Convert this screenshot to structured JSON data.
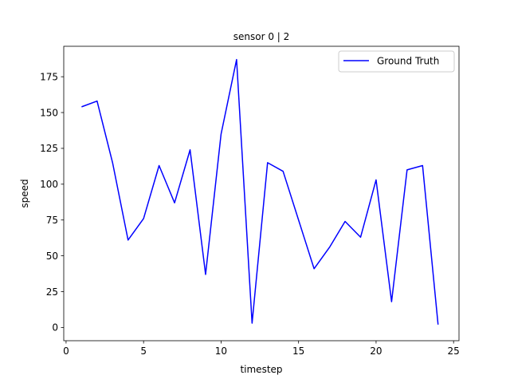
{
  "chart_data": {
    "type": "line",
    "title": "sensor 0 | 2",
    "xlabel": "timestep",
    "ylabel": "speed",
    "xlim": [
      -0.15,
      25.35
    ],
    "ylim": [
      -9.25,
      196.25
    ],
    "xticks": [
      0,
      5,
      10,
      15,
      20,
      25
    ],
    "yticks": [
      0,
      25,
      50,
      75,
      100,
      125,
      150,
      175
    ],
    "grid": false,
    "legend": {
      "placement": "top-right"
    },
    "series": [
      {
        "name": "Ground Truth",
        "color": "#0000ff",
        "x": [
          1,
          2,
          3,
          4,
          5,
          6,
          7,
          8,
          9,
          10,
          11,
          12,
          13,
          14,
          15,
          16,
          17,
          18,
          19,
          20,
          21,
          22,
          23,
          24
        ],
        "y": [
          154,
          158,
          115,
          61,
          76,
          113,
          87,
          124,
          37,
          135,
          187,
          3,
          115,
          109,
          75,
          41,
          56,
          74,
          63,
          103,
          18,
          110,
          113,
          2
        ]
      }
    ]
  }
}
